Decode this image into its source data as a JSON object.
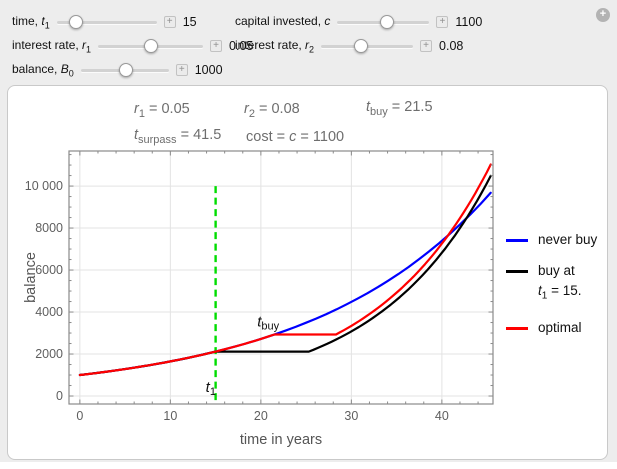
{
  "window": {
    "corner_plus_icon": "+"
  },
  "controls": {
    "stepper_icon": "+",
    "left": [
      {
        "label_pre": "time, ",
        "sym": "t",
        "sub": "1",
        "value": "15",
        "thumb_pct": 19,
        "track_w": 100
      },
      {
        "label_pre": "interest rate, ",
        "sym": "r",
        "sub": "1",
        "value": "0.05",
        "thumb_pct": 50,
        "track_w": 105
      },
      {
        "label_pre": "balance, ",
        "sym": "B",
        "sub": "0",
        "value": "1000",
        "thumb_pct": 51,
        "track_w": 88
      }
    ],
    "right": [
      {
        "label_pre": "capital invested, ",
        "sym": "c",
        "sub": "",
        "value": "1100",
        "thumb_pct": 54,
        "track_w": 92
      },
      {
        "label_pre": "interest rate, ",
        "sym": "r",
        "sub": "2",
        "value": "0.08",
        "thumb_pct": 43,
        "track_w": 92
      }
    ]
  },
  "stats": {
    "r1": {
      "pre": "",
      "sym": "r",
      "sub": "1",
      "rest": " = 0.05"
    },
    "r2": {
      "pre": "",
      "sym": "r",
      "sub": "2",
      "rest": " = 0.08"
    },
    "tbuy": {
      "pre": "",
      "sym": "t",
      "sub": "buy",
      "rest": " = 21.5"
    },
    "tsurpass": {
      "pre": "",
      "sym": "t",
      "sub": "surpass",
      "rest": " = 41.5"
    },
    "cost": {
      "pre": "cost = ",
      "sym": "c",
      "sub": "",
      "rest": " = 1100"
    }
  },
  "legend": {
    "items": [
      {
        "label": "never buy"
      },
      {
        "label": "buy at",
        "sub_line": {
          "sym": "t",
          "sub": "1",
          "rest": " = 15."
        }
      },
      {
        "label": "optimal"
      }
    ]
  },
  "chart_data": {
    "type": "line",
    "xlabel": "time in years",
    "ylabel": "balance",
    "xlim": [
      -1.2,
      45.65
    ],
    "ylim": [
      -380,
      11670
    ],
    "x_ticks": [
      0,
      10,
      20,
      30,
      40
    ],
    "x_minor_step": 2,
    "y_ticks": [
      0,
      2000,
      4000,
      6000,
      8000,
      10000
    ],
    "y_tick_labels": [
      "0",
      "2000",
      "4000",
      "6000",
      "8000",
      "10 000"
    ],
    "y_minor_step": 500,
    "grid": true,
    "legend_position": "right",
    "params": {
      "B0": 1000,
      "r1": 0.05,
      "r2": 0.08,
      "c": 1100,
      "t1": 15,
      "t_buy": 21.5,
      "t_surpass": 41.5
    },
    "series": [
      {
        "name": "never buy",
        "color": "#0000ff",
        "segments": [
          {
            "kind": "exp",
            "t0": 0,
            "t1": 45.4,
            "v0": 1000,
            "rate": 0.05
          }
        ]
      },
      {
        "name": "buy at t1 = 15.",
        "color": "#000000",
        "segments": [
          {
            "kind": "exp",
            "t0": 0,
            "t1": 15,
            "v0": 1000,
            "rate": 0.05
          },
          {
            "kind": "flat",
            "t0": 15,
            "t1": 25.3,
            "v": 2117
          },
          {
            "kind": "exp",
            "t0": 25.3,
            "t1": 45.4,
            "v0": 2117,
            "rate": 0.0796
          }
        ]
      },
      {
        "name": "optimal",
        "color": "#ff0000",
        "segments": [
          {
            "kind": "exp",
            "t0": 0,
            "t1": 21.5,
            "v0": 1000,
            "rate": 0.05
          },
          {
            "kind": "flat",
            "t0": 21.5,
            "t1": 28.3,
            "v": 2930
          },
          {
            "kind": "exp",
            "t0": 28.3,
            "t1": 45.4,
            "v0": 2930,
            "rate": 0.0775
          }
        ]
      }
    ],
    "marker_line": {
      "x": 15,
      "v_top": 10000,
      "color": "#00dd00",
      "dashed": true
    },
    "annotations": [
      {
        "sym": "t",
        "sub": "buy",
        "t": 19.6,
        "v": 3300
      },
      {
        "sym": "t",
        "sub": "1",
        "t": 13.9,
        "v": 190
      }
    ]
  }
}
